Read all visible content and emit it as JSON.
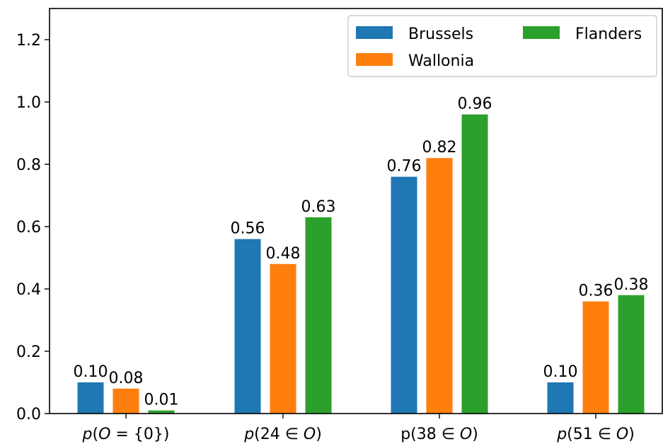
{
  "chart_data": {
    "type": "bar",
    "title": "",
    "xlabel": "",
    "ylabel": "",
    "ylim": [
      0,
      1.3
    ],
    "yticks": [
      "0.0",
      "0.2",
      "0.4",
      "0.6",
      "0.8",
      "1.0",
      "1.2"
    ],
    "grid": false,
    "legend_position": "top-right",
    "categories": [
      {
        "pre": "",
        "it1": "p",
        "mid": "(",
        "it2": "O",
        "post": " = {0})"
      },
      {
        "pre": "",
        "it1": "p",
        "mid": "(24 ∈ ",
        "it2": "O",
        "post": ")"
      },
      {
        "pre": "p(38 ∈ ",
        "it1": "",
        "mid": "",
        "it2": "O",
        "post": ")"
      },
      {
        "pre": "",
        "it1": "p",
        "mid": "(51 ∈ ",
        "it2": "O",
        "post": ")"
      }
    ],
    "series": [
      {
        "name": "Brussels",
        "color": "#1f77b4",
        "values": [
          0.1,
          0.56,
          0.76,
          0.1
        ],
        "labels": [
          "0.10",
          "0.56",
          "0.76",
          "0.10"
        ]
      },
      {
        "name": "Wallonia",
        "color": "#ff7f0e",
        "values": [
          0.08,
          0.48,
          0.82,
          0.36
        ],
        "labels": [
          "0.08",
          "0.48",
          "0.82",
          "0.36"
        ]
      },
      {
        "name": "Flanders",
        "color": "#2ca02c",
        "values": [
          0.01,
          0.63,
          0.96,
          0.38
        ],
        "labels": [
          "0.01",
          "0.63",
          "0.96",
          "0.38"
        ]
      }
    ]
  }
}
